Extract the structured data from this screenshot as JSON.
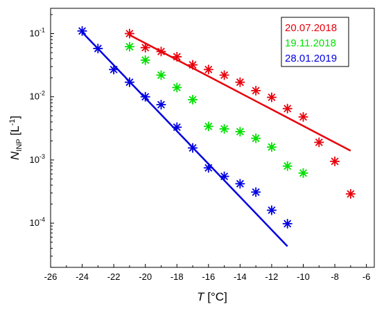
{
  "chart_data": {
    "type": "scatter",
    "xlabel": {
      "main": "T",
      "unit": " [°C]"
    },
    "ylabel": {
      "main": "N",
      "sub": "INP",
      "unit_pre": " [L",
      "unit_sup": "-1",
      "unit_post": "]"
    },
    "xlim": [
      -26,
      -5.5
    ],
    "ylim_log10": [
      -4.7,
      -0.6
    ],
    "y_scale": "log",
    "x_ticks": [
      -26,
      -24,
      -22,
      -20,
      -18,
      -16,
      -14,
      -12,
      -10,
      -8,
      -6
    ],
    "x_tick_labels": [
      "-26",
      "-24",
      "-22",
      "-20",
      "-18",
      "-16",
      "-14",
      "-12",
      "-10",
      "-8",
      "-6"
    ],
    "y_ticks": [
      {
        "base": "10",
        "exp": "-4",
        "value": 0.0001
      },
      {
        "base": "10",
        "exp": "-3",
        "value": 0.001
      },
      {
        "base": "10",
        "exp": "-2",
        "value": 0.01
      },
      {
        "base": "10",
        "exp": "-1",
        "value": 0.1
      }
    ],
    "legend_position": "top-right",
    "series": [
      {
        "name": "20.07.2018",
        "color": "#e8000b",
        "x": [
          -21,
          -20,
          -19,
          -18,
          -17,
          -16,
          -15,
          -14,
          -13,
          -12,
          -11,
          -10,
          -9,
          -8,
          -7
        ],
        "y": [
          0.1,
          0.06,
          0.052,
          0.043,
          0.032,
          0.027,
          0.022,
          0.017,
          0.0125,
          0.0098,
          0.0065,
          0.0048,
          0.0019,
          0.00095,
          0.00029
        ],
        "fit": {
          "x": [
            -21,
            -7
          ],
          "y": [
            0.095,
            0.0014
          ]
        }
      },
      {
        "name": "19.11.2018",
        "color": "#00e000",
        "x": [
          -21,
          -20,
          -19,
          -18,
          -17,
          -16,
          -15,
          -14,
          -13,
          -12,
          -11,
          -10
        ],
        "y": [
          0.062,
          0.038,
          0.022,
          0.014,
          0.009,
          0.0034,
          0.0031,
          0.0028,
          0.0022,
          0.0016,
          0.0008,
          0.00062
        ]
      },
      {
        "name": "28.01.2019",
        "color": "#0000e0",
        "x": [
          -24,
          -23,
          -22,
          -21,
          -20,
          -19,
          -18,
          -17,
          -16,
          -15,
          -14,
          -13,
          -12,
          -11
        ],
        "y": [
          0.11,
          0.058,
          0.027,
          0.017,
          0.01,
          0.0075,
          0.0033,
          0.00155,
          0.00075,
          0.00055,
          0.00042,
          0.00031,
          0.00016,
          9.8e-05
        ],
        "fit": {
          "x": [
            -24,
            -11
          ],
          "y": [
            0.105,
            4.3e-05
          ]
        }
      }
    ]
  }
}
